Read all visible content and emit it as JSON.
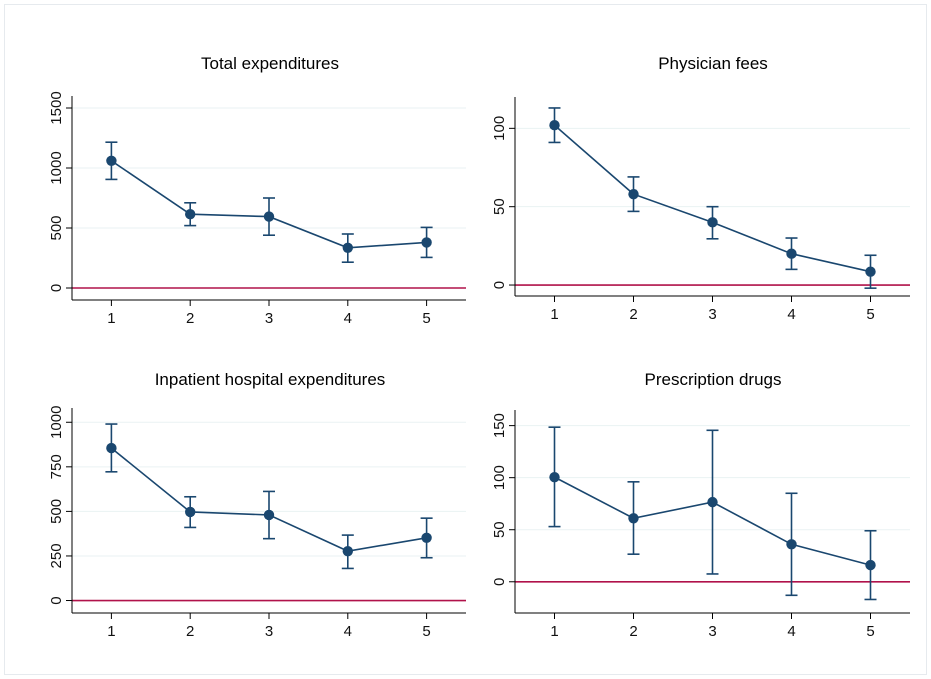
{
  "colors": {
    "series": "#1a476f",
    "reference_line": "#b0124a",
    "grid": "#eaf2f3",
    "frame": "#e6eaee"
  },
  "chart_data": [
    {
      "type": "line",
      "title": "Total expenditures",
      "xlabel": "",
      "ylabel": "",
      "x": [
        1,
        2,
        3,
        4,
        5
      ],
      "values": [
        1060,
        615,
        595,
        335,
        380
      ],
      "ci_low": [
        905,
        520,
        440,
        215,
        255
      ],
      "ci_high": [
        1215,
        710,
        750,
        450,
        505
      ],
      "yticks": [
        0,
        500,
        1000,
        1500
      ],
      "ytick_labels": [
        "0",
        "500",
        "1000",
        "1500"
      ],
      "xticks": [
        1,
        2,
        3,
        4,
        5
      ],
      "xtick_labels": [
        "1",
        "2",
        "3",
        "4",
        "5"
      ],
      "ylim": [
        -100,
        1600
      ],
      "xlim": [
        0.5,
        5.5
      ],
      "reference_line": 0,
      "grid": true
    },
    {
      "type": "line",
      "title": "Physician fees",
      "xlabel": "",
      "ylabel": "",
      "x": [
        1,
        2,
        3,
        4,
        5
      ],
      "values": [
        102,
        58,
        40,
        20,
        8.5
      ],
      "ci_low": [
        91,
        47,
        29.5,
        10,
        -2
      ],
      "ci_high": [
        113,
        69,
        50,
        30,
        19
      ],
      "yticks": [
        0,
        50,
        100
      ],
      "ytick_labels": [
        "0",
        "50",
        "100"
      ],
      "xticks": [
        1,
        2,
        3,
        4,
        5
      ],
      "xtick_labels": [
        "1",
        "2",
        "3",
        "4",
        "5"
      ],
      "ylim": [
        -7,
        120
      ],
      "xlim": [
        0.5,
        5.5
      ],
      "reference_line": 0,
      "grid": true
    },
    {
      "type": "line",
      "title": "Inpatient hospital expenditures",
      "xlabel": "",
      "ylabel": "",
      "x": [
        1,
        2,
        3,
        4,
        5
      ],
      "values": [
        855,
        497,
        480,
        277,
        352
      ],
      "ci_low": [
        722,
        410,
        347,
        180,
        240
      ],
      "ci_high": [
        990,
        582,
        612,
        367,
        462
      ],
      "yticks": [
        0,
        250,
        500,
        750,
        1000
      ],
      "ytick_labels": [
        "0",
        "250",
        "500",
        "750",
        "1000"
      ],
      "xticks": [
        1,
        2,
        3,
        4,
        5
      ],
      "xtick_labels": [
        "1",
        "2",
        "3",
        "4",
        "5"
      ],
      "ylim": [
        -70,
        1080
      ],
      "xlim": [
        0.5,
        5.5
      ],
      "reference_line": 0,
      "grid": true
    },
    {
      "type": "line",
      "title": "Prescription drugs",
      "xlabel": "",
      "ylabel": "",
      "x": [
        1,
        2,
        3,
        4,
        5
      ],
      "values": [
        100.5,
        61,
        76.5,
        36,
        16
      ],
      "ci_low": [
        53,
        26.5,
        7.5,
        -13,
        -17
      ],
      "ci_high": [
        148.5,
        96,
        145.5,
        85,
        49
      ],
      "yticks": [
        0,
        50,
        100,
        150
      ],
      "ytick_labels": [
        "0",
        "50",
        "100",
        "150"
      ],
      "xticks": [
        1,
        2,
        3,
        4,
        5
      ],
      "xtick_labels": [
        "1",
        "2",
        "3",
        "4",
        "5"
      ],
      "ylim": [
        -30,
        165
      ],
      "xlim": [
        0.5,
        5.5
      ],
      "reference_line": 0,
      "grid": true
    }
  ]
}
